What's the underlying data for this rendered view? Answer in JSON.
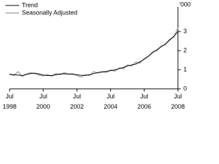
{
  "chart_data": {
    "type": "line",
    "y_label": "'000",
    "x": [
      1998.5,
      1998.75,
      1999,
      1999.25,
      1999.5,
      1999.75,
      2000,
      2000.25,
      2000.5,
      2000.75,
      2001,
      2001.25,
      2001.5,
      2001.75,
      2002,
      2002.25,
      2002.5,
      2002.75,
      2003,
      2003.25,
      2003.5,
      2003.75,
      2004,
      2004.25,
      2004.5,
      2004.75,
      2005,
      2005.25,
      2005.5,
      2005.75,
      2006,
      2006.25,
      2006.5,
      2006.75,
      2007,
      2007.25,
      2007.5,
      2007.75,
      2008,
      2008.25,
      2008.5
    ],
    "series": [
      {
        "name": "Trend",
        "color": "#000000",
        "values": [
          0.75,
          0.74,
          0.72,
          0.7,
          0.75,
          0.8,
          0.82,
          0.78,
          0.72,
          0.7,
          0.7,
          0.74,
          0.78,
          0.79,
          0.78,
          0.76,
          0.74,
          0.71,
          0.7,
          0.74,
          0.8,
          0.86,
          0.88,
          0.92,
          0.95,
          1.0,
          1.05,
          1.12,
          1.2,
          1.25,
          1.3,
          1.42,
          1.55,
          1.72,
          1.9,
          2.05,
          2.2,
          2.35,
          2.55,
          2.75,
          3.0
        ]
      },
      {
        "name": "Seasonally Adjusted",
        "color": "#aaaaaa",
        "values": [
          0.8,
          0.7,
          0.9,
          0.65,
          0.78,
          0.85,
          0.8,
          0.72,
          0.68,
          0.75,
          0.66,
          0.8,
          0.74,
          0.85,
          0.76,
          0.8,
          0.7,
          0.62,
          0.75,
          0.7,
          0.9,
          0.82,
          0.92,
          0.85,
          1.0,
          0.92,
          1.1,
          1.05,
          1.25,
          1.2,
          1.4,
          1.35,
          1.6,
          1.7,
          1.95,
          2.0,
          2.25,
          2.3,
          2.6,
          2.7,
          3.2
        ]
      }
    ],
    "xlim": [
      1998.5,
      2008.5
    ],
    "xticks": [
      {
        "value": 1998.5,
        "label": "Jul 1998"
      },
      {
        "value": 2000.5,
        "label": "Jul 2000"
      },
      {
        "value": 2002.5,
        "label": "Jul 2002"
      },
      {
        "value": 2004.5,
        "label": "Jul 2004"
      },
      {
        "value": 2006.5,
        "label": "Jul 2006"
      },
      {
        "value": 2008.5,
        "label": "Jul 2008"
      }
    ],
    "ylim": [
      0,
      4.3
    ],
    "yticks": [
      0,
      1,
      2,
      3
    ],
    "legend": "top-left"
  }
}
